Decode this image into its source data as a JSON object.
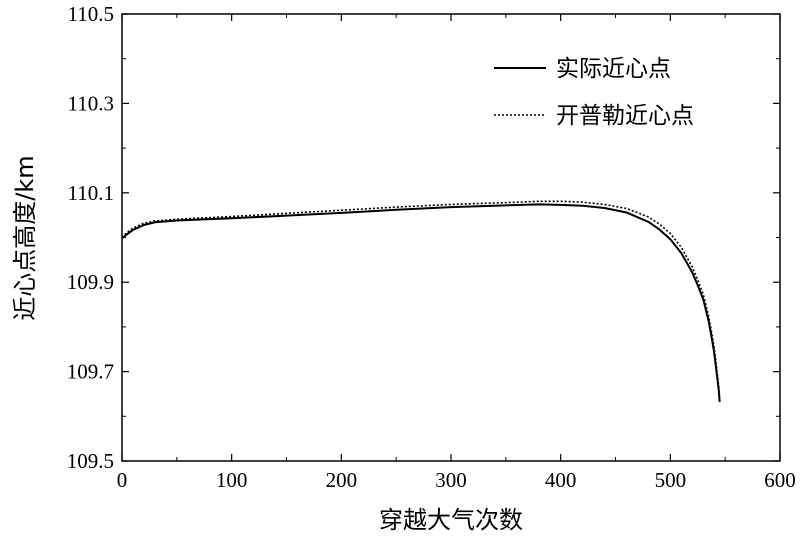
{
  "chart_data": {
    "type": "line",
    "title": "",
    "xlabel": "穿越大气次数",
    "ylabel": "近心点高度/km",
    "xlim": [
      0,
      600
    ],
    "ylim": [
      109.5,
      110.5
    ],
    "xticks": [
      "0",
      "100",
      "200",
      "300",
      "400",
      "500",
      "600"
    ],
    "yticks": [
      "109.5",
      "109.7",
      "109.9",
      "110.1",
      "110.3",
      "110.5"
    ],
    "grid": false,
    "legend_position": "top-right",
    "series": [
      {
        "name": "实际近心点",
        "style": "solid",
        "color": "#000000",
        "x": [
          0,
          5,
          10,
          20,
          30,
          50,
          100,
          150,
          200,
          250,
          300,
          350,
          380,
          400,
          420,
          440,
          460,
          480,
          490,
          500,
          510,
          520,
          525,
          530,
          535,
          538,
          540,
          542,
          544,
          545
        ],
        "y": [
          109.998,
          110.008,
          110.017,
          110.028,
          110.034,
          110.038,
          110.043,
          110.049,
          110.055,
          110.062,
          110.068,
          110.072,
          110.074,
          110.073,
          110.071,
          110.066,
          110.056,
          110.035,
          110.018,
          109.996,
          109.965,
          109.922,
          109.893,
          109.862,
          109.812,
          109.772,
          109.742,
          109.702,
          109.662,
          109.632
        ]
      },
      {
        "name": "开普勒近心点",
        "style": "dotted",
        "color": "#000000",
        "x": [
          0,
          5,
          10,
          20,
          30,
          50,
          100,
          150,
          200,
          250,
          300,
          350,
          380,
          400,
          420,
          440,
          460,
          480,
          490,
          500,
          510,
          520,
          525,
          530,
          535,
          538,
          540,
          542,
          544,
          545
        ],
        "y": [
          110.0,
          110.012,
          110.021,
          110.032,
          110.037,
          110.041,
          110.047,
          110.054,
          110.061,
          110.068,
          110.074,
          110.078,
          110.081,
          110.081,
          110.079,
          110.074,
          110.065,
          110.046,
          110.03,
          110.009,
          109.978,
          109.934,
          109.905,
          109.873,
          109.823,
          109.783,
          109.753,
          109.712,
          109.67,
          109.636
        ]
      }
    ]
  }
}
